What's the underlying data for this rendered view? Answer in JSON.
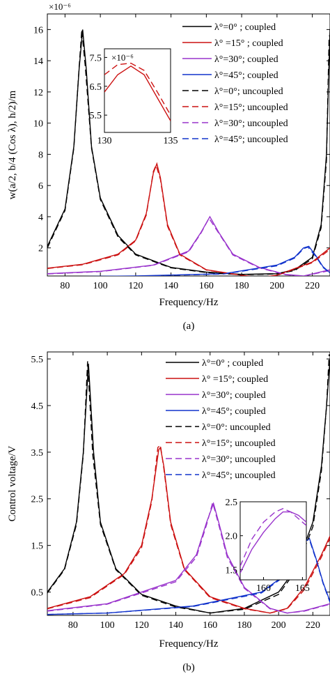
{
  "chart_data": [
    {
      "id": "a",
      "type": "line",
      "caption": "(a)",
      "xlabel": "Frequency/Hz",
      "ylabel": "w(a/2, b/4 (Cos λ), h/2)/m",
      "y_exponent_label": "×10⁻⁶",
      "xlim": [
        70,
        230
      ],
      "ylim": [
        0.2,
        17
      ],
      "xticks": [
        80,
        100,
        120,
        140,
        160,
        180,
        200,
        220
      ],
      "yticks": [
        2,
        4,
        6,
        8,
        10,
        12,
        14,
        16
      ],
      "legend_position": "top-right",
      "series": [
        {
          "name": "λ°=0° ; coupled",
          "color": "#000000",
          "style": "solid",
          "x": [
            70,
            80,
            85,
            88,
            90,
            92,
            95,
            100,
            110,
            120,
            140,
            160,
            180,
            200,
            210,
            220,
            225,
            228,
            230
          ],
          "y": [
            2.1,
            4.5,
            8.5,
            13.5,
            16.0,
            13.5,
            8.5,
            5.2,
            2.8,
            1.6,
            0.75,
            0.45,
            0.3,
            0.35,
            0.6,
            1.4,
            3.5,
            8.0,
            16.0
          ]
        },
        {
          "name": "λ° =15° ; coupled",
          "color": "#cc1111",
          "style": "solid",
          "x": [
            70,
            90,
            110,
            120,
            126,
            130,
            132,
            134,
            138,
            145,
            160,
            180,
            190,
            200,
            220,
            230
          ],
          "y": [
            0.7,
            0.95,
            1.6,
            2.5,
            4.2,
            6.8,
            7.4,
            6.5,
            3.5,
            1.6,
            0.6,
            0.25,
            0.1,
            0.25,
            1.1,
            2.0
          ]
        },
        {
          "name": "λ°=30°; coupled",
          "color": "#9933cc",
          "style": "solid",
          "x": [
            70,
            100,
            130,
            150,
            157,
            162,
            167,
            175,
            190,
            205,
            215,
            230
          ],
          "y": [
            0.35,
            0.5,
            0.9,
            1.8,
            3.0,
            4.0,
            3.0,
            1.6,
            0.75,
            0.3,
            0.2,
            0.6
          ]
        },
        {
          "name": "λ°=45°; coupled",
          "color": "#1133cc",
          "style": "solid",
          "x": [
            70,
            120,
            170,
            200,
            210,
            215,
            218,
            222,
            226,
            230
          ],
          "y": [
            0.15,
            0.2,
            0.35,
            0.9,
            1.4,
            2.0,
            2.1,
            1.5,
            0.8,
            0.4
          ]
        },
        {
          "name": "λ°=0°; uncoupled",
          "color": "#000000",
          "style": "dashed",
          "x": [
            70,
            80,
            85,
            88,
            89.5,
            91.5,
            95,
            100,
            110,
            120,
            140,
            160,
            180,
            200,
            210,
            220,
            225,
            228,
            229.5
          ],
          "y": [
            2.0,
            4.4,
            8.4,
            13.6,
            16.0,
            13.6,
            8.4,
            5.1,
            2.7,
            1.55,
            0.72,
            0.42,
            0.28,
            0.33,
            0.55,
            1.3,
            3.3,
            7.6,
            15.6
          ]
        },
        {
          "name": "λ°=15°; uncoupled",
          "color": "#cc1111",
          "style": "dashed",
          "x": [
            70,
            90,
            110,
            120,
            126,
            130,
            131.5,
            134,
            138,
            145,
            160,
            180,
            190,
            200,
            220,
            230
          ],
          "y": [
            0.68,
            0.92,
            1.55,
            2.45,
            4.1,
            6.9,
            7.3,
            6.4,
            3.4,
            1.55,
            0.58,
            0.24,
            0.1,
            0.24,
            1.05,
            1.9
          ]
        },
        {
          "name": "λ°=30°; uncoupled",
          "color": "#9933cc",
          "style": "dashed",
          "x": [
            70,
            100,
            130,
            150,
            157,
            161.5,
            167,
            175,
            190,
            205,
            215,
            230
          ],
          "y": [
            0.33,
            0.48,
            0.88,
            1.75,
            2.95,
            3.9,
            2.95,
            1.55,
            0.72,
            0.28,
            0.19,
            0.55
          ]
        },
        {
          "name": "λ°=45°; uncoupled",
          "color": "#1133cc",
          "style": "dashed",
          "x": [
            70,
            120,
            170,
            200,
            210,
            215,
            217.5,
            222,
            226,
            230
          ],
          "y": [
            0.14,
            0.19,
            0.33,
            0.85,
            1.35,
            1.95,
            2.05,
            1.45,
            0.75,
            0.38
          ]
        }
      ],
      "inset": {
        "y_exponent_label": "×10⁻⁶",
        "xlim": [
          130,
          135
        ],
        "ylim": [
          4.9,
          7.8
        ],
        "xticks": [
          130,
          135
        ],
        "yticks": [
          5.5,
          6.5,
          7.5
        ],
        "series": [
          {
            "color": "#cc1111",
            "style": "solid",
            "x": [
              130,
              131,
              132,
              133,
              134,
              135
            ],
            "y": [
              6.3,
              6.9,
              7.2,
              6.9,
              6.1,
              5.3
            ]
          },
          {
            "color": "#cc1111",
            "style": "dashed",
            "x": [
              130,
              131,
              132,
              133,
              134,
              135
            ],
            "y": [
              6.9,
              7.25,
              7.3,
              7.05,
              6.3,
              5.5
            ]
          }
        ]
      }
    },
    {
      "id": "b",
      "type": "line",
      "caption": "(b)",
      "xlabel": "Frequency/Hz",
      "ylabel": "Control voltage/V",
      "xlim": [
        65,
        230
      ],
      "ylim": [
        0,
        5.65
      ],
      "xticks": [
        80,
        100,
        120,
        140,
        160,
        180,
        200,
        220
      ],
      "yticks": [
        0.5,
        1.5,
        2.5,
        3.5,
        4.5,
        5.5
      ],
      "legend_position": "top-right",
      "series": [
        {
          "name": "λ°=0° ; coupled",
          "color": "#000000",
          "style": "solid",
          "x": [
            65,
            75,
            82,
            86,
            89,
            92,
            96,
            105,
            120,
            140,
            160,
            180,
            200,
            210,
            220,
            225,
            228,
            230
          ],
          "y": [
            0.5,
            1.0,
            2.0,
            3.5,
            5.4,
            3.5,
            2.0,
            1.0,
            0.45,
            0.2,
            0.05,
            0.15,
            0.5,
            1.0,
            2.0,
            3.2,
            4.5,
            5.5
          ]
        },
        {
          "name": "λ° =15°; coupled",
          "color": "#cc1111",
          "style": "solid",
          "x": [
            65,
            90,
            110,
            120,
            126,
            130,
            131,
            133,
            137,
            145,
            160,
            180,
            195,
            205,
            215,
            225,
            230
          ],
          "y": [
            0.15,
            0.4,
            0.9,
            1.5,
            2.5,
            3.55,
            3.6,
            3.2,
            2.0,
            1.0,
            0.4,
            0.15,
            0.05,
            0.15,
            0.6,
            1.3,
            1.7
          ]
        },
        {
          "name": "λ°=30°; coupled",
          "color": "#9933cc",
          "style": "solid",
          "x": [
            65,
            100,
            140,
            152,
            158,
            162,
            165,
            170,
            180,
            195,
            205,
            215,
            230
          ],
          "y": [
            0.1,
            0.25,
            0.75,
            1.3,
            2.0,
            2.4,
            2.0,
            1.3,
            0.6,
            0.15,
            0.05,
            0.1,
            0.25
          ]
        },
        {
          "name": "λ°=45°; coupled",
          "color": "#1133cc",
          "style": "solid",
          "x": [
            65,
            100,
            150,
            190,
            205,
            212,
            216,
            218,
            222,
            226,
            230
          ],
          "y": [
            0.02,
            0.05,
            0.2,
            0.5,
            0.9,
            1.3,
            1.6,
            1.65,
            1.2,
            0.7,
            0.3
          ]
        },
        {
          "name": "λ°=0°: uncoupled",
          "color": "#000000",
          "style": "dashed",
          "x": [
            65,
            75,
            82,
            86,
            88.5,
            91.5,
            96,
            105,
            120,
            140,
            160,
            180,
            200,
            210,
            220,
            225,
            228,
            229.5
          ],
          "y": [
            0.48,
            0.98,
            1.95,
            3.45,
            5.45,
            3.45,
            1.95,
            0.98,
            0.43,
            0.18,
            0.05,
            0.13,
            0.45,
            0.95,
            1.9,
            3.1,
            4.5,
            5.6
          ]
        },
        {
          "name": "λ°=15°; uncoupled",
          "color": "#cc1111",
          "style": "dashed",
          "x": [
            65,
            90,
            110,
            120,
            126,
            129.5,
            131,
            133,
            137,
            145,
            160,
            180,
            195,
            205,
            215,
            225,
            230
          ],
          "y": [
            0.14,
            0.38,
            0.88,
            1.45,
            2.45,
            3.6,
            3.65,
            3.15,
            1.95,
            0.98,
            0.38,
            0.14,
            0.05,
            0.14,
            0.55,
            1.25,
            1.65
          ]
        },
        {
          "name": "λ°=30°; uncoupled",
          "color": "#9933cc",
          "style": "dashed",
          "x": [
            65,
            100,
            140,
            152,
            158,
            161.5,
            165,
            170,
            180,
            195,
            205,
            215,
            230
          ],
          "y": [
            0.09,
            0.24,
            0.72,
            1.25,
            1.95,
            2.42,
            1.95,
            1.25,
            0.58,
            0.14,
            0.05,
            0.09,
            0.24
          ]
        },
        {
          "name": "λ°=45°; uncoupled",
          "color": "#1133cc",
          "style": "dashed",
          "x": [
            65,
            100,
            150,
            190,
            205,
            212,
            215.5,
            218,
            222,
            226,
            230
          ],
          "y": [
            0.02,
            0.05,
            0.19,
            0.48,
            0.88,
            1.28,
            1.6,
            1.62,
            1.18,
            0.68,
            0.28
          ]
        }
      ],
      "inset": {
        "xlim": [
          157,
          165.5
        ],
        "ylim": [
          1.35,
          2.5
        ],
        "xticks": [
          160,
          165
        ],
        "yticks": [
          1.5,
          2.0,
          2.5
        ],
        "series": [
          {
            "color": "#9933cc",
            "style": "solid",
            "x": [
              157,
              158.5,
              160,
              161.5,
              162.5,
              163.5,
              164.5,
              165.5
            ],
            "y": [
              1.45,
              1.8,
              2.05,
              2.25,
              2.35,
              2.35,
              2.3,
              2.2
            ]
          },
          {
            "color": "#9933cc",
            "style": "dashed",
            "x": [
              157,
              158.5,
              160,
              161.5,
              162.5,
              163.5,
              164.5,
              165.5
            ],
            "y": [
              1.55,
              1.95,
              2.2,
              2.35,
              2.4,
              2.35,
              2.25,
              2.15
            ]
          }
        ]
      }
    }
  ]
}
